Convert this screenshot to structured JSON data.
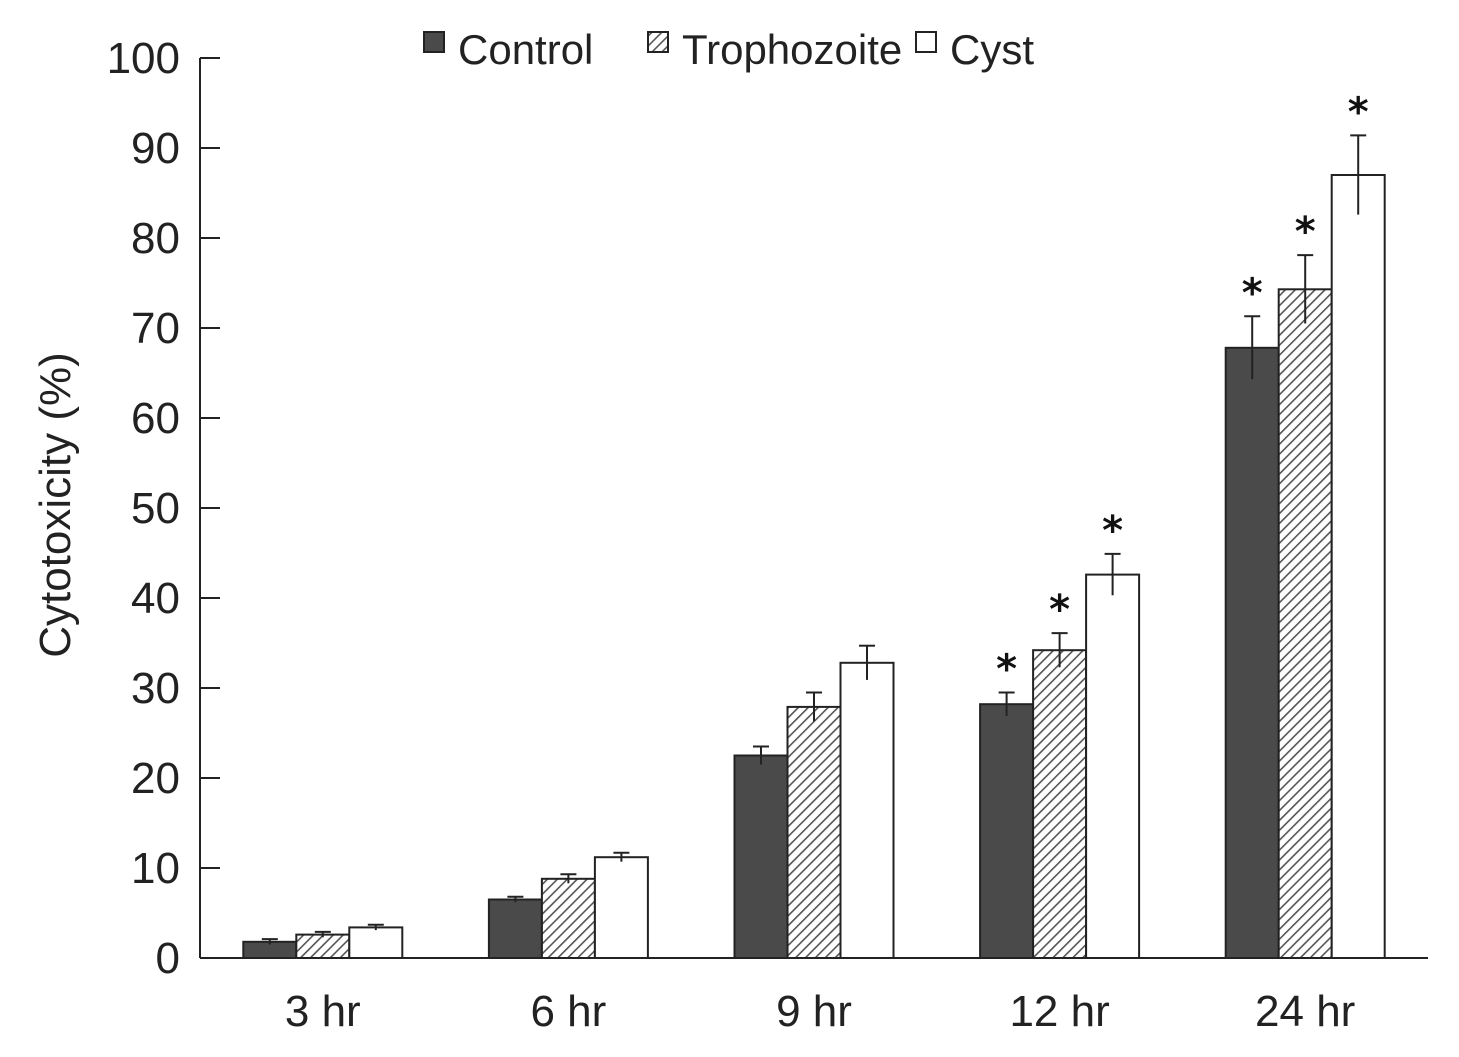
{
  "chart_data": {
    "type": "bar",
    "title": "",
    "xlabel": "",
    "ylabel": "Cytotoxicity (%)",
    "ylim": [
      0,
      100
    ],
    "yticks": [
      0,
      10,
      20,
      30,
      40,
      50,
      60,
      70,
      80,
      90,
      100
    ],
    "categories": [
      "3 hr",
      "6 hr",
      "9 hr",
      "12 hr",
      "24 hr"
    ],
    "legend_position": "top-center",
    "series": [
      {
        "name": "Control",
        "fill": "solid",
        "color": "#4a4a4a",
        "values": [
          1.8,
          6.5,
          22.5,
          28.2,
          67.8
        ],
        "errors": [
          0.3,
          0.3,
          1.0,
          1.3,
          3.5
        ],
        "significant": [
          false,
          false,
          false,
          true,
          true
        ]
      },
      {
        "name": "Trophozoite",
        "fill": "hatched",
        "color": "#555555",
        "values": [
          2.6,
          8.8,
          27.9,
          34.2,
          74.3
        ],
        "errors": [
          0.3,
          0.5,
          1.6,
          1.9,
          3.8
        ],
        "significant": [
          false,
          false,
          false,
          true,
          true
        ]
      },
      {
        "name": "Cyst",
        "fill": "empty",
        "color": "#ffffff",
        "values": [
          3.4,
          11.2,
          32.8,
          42.6,
          87.0
        ],
        "errors": [
          0.3,
          0.5,
          1.9,
          2.3,
          4.4
        ],
        "significant": [
          false,
          false,
          false,
          true,
          true
        ]
      }
    ],
    "significance_marker": "*"
  }
}
